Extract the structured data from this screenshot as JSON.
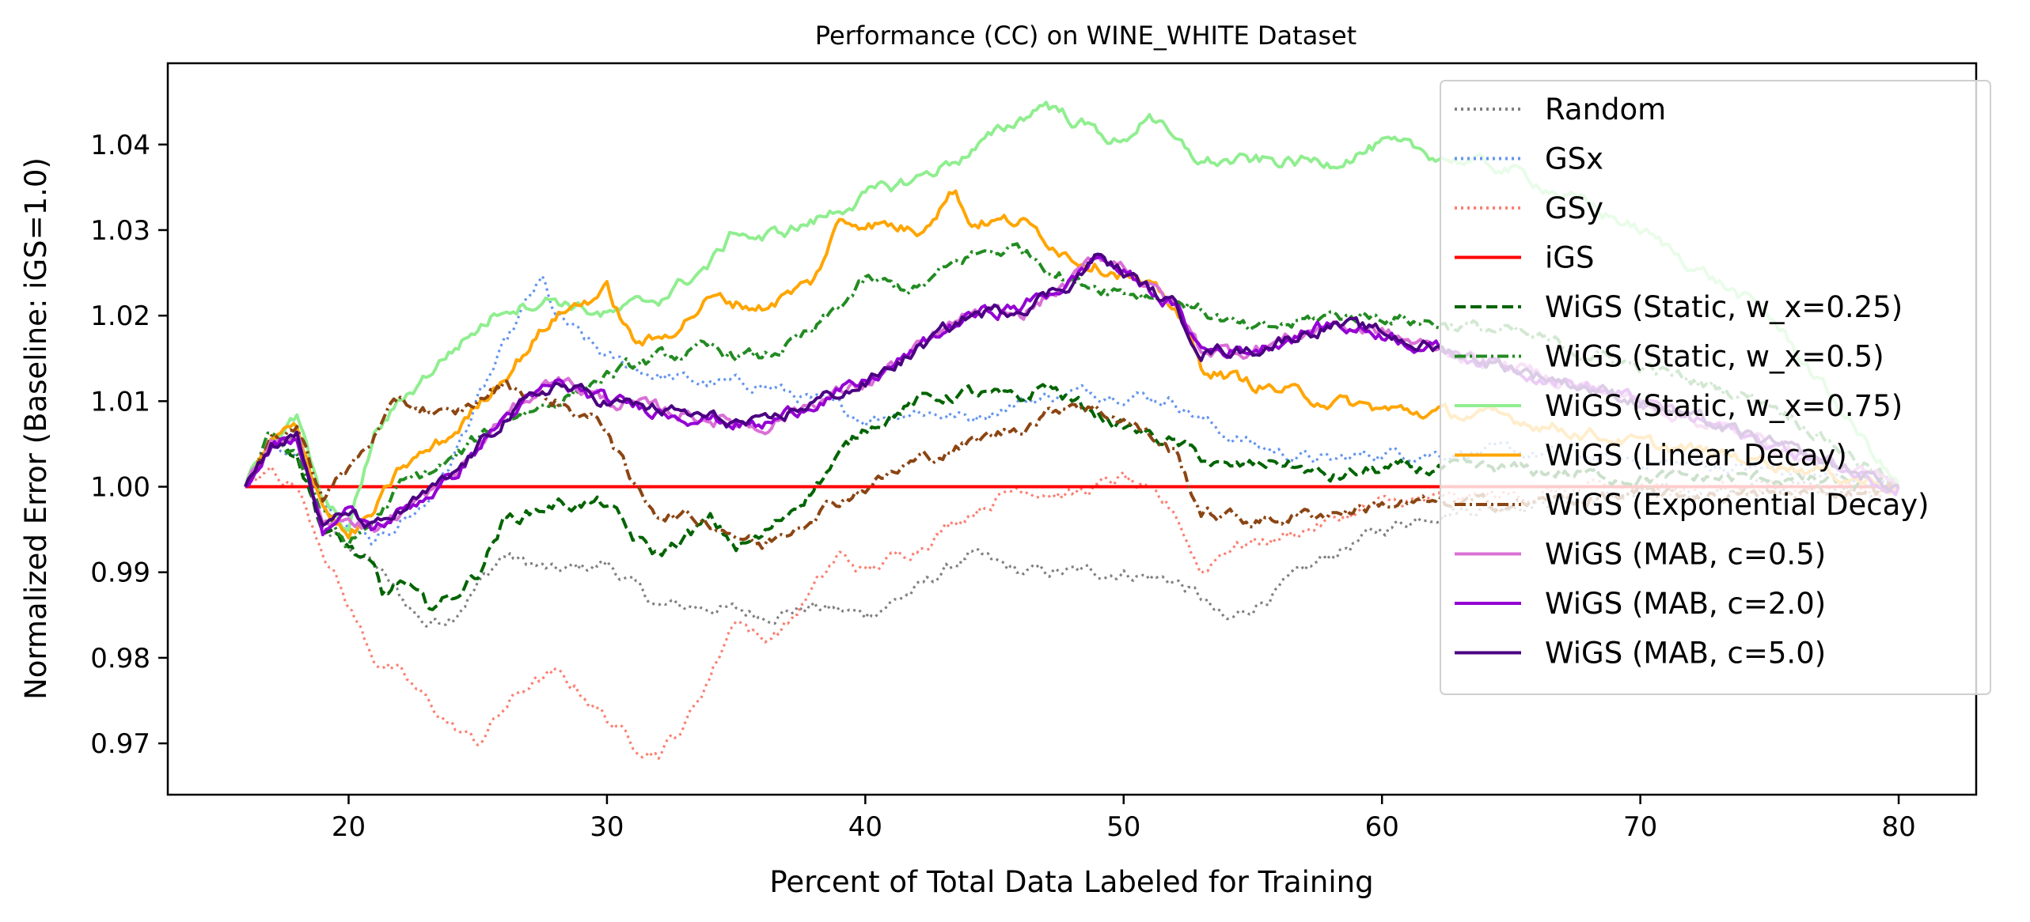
{
  "chart_data": {
    "type": "line",
    "title": "Performance (CC) on WINE_WHITE Dataset",
    "xlabel": "Percent of Total Data Labeled for Training",
    "ylabel": "Normalized Error (Baseline: iGS=1.0)",
    "xlim": [
      13,
      83
    ],
    "ylim": [
      0.964,
      1.0495
    ],
    "xticks": [
      20,
      30,
      40,
      50,
      60,
      70,
      80
    ],
    "yticks": [
      0.97,
      0.98,
      0.99,
      1.0,
      1.01,
      1.02,
      1.03,
      1.04
    ],
    "grid": false,
    "legend_position": "top-right",
    "series": [
      {
        "name": "Random",
        "color": "#808080",
        "style": "dotted",
        "x": [
          16,
          17,
          18,
          19,
          20,
          21,
          22,
          23,
          24,
          26,
          28,
          30,
          32,
          34,
          36,
          38,
          40,
          42,
          44,
          46,
          48,
          50,
          52,
          53,
          54,
          56,
          58,
          60,
          62,
          65,
          70,
          75,
          80
        ],
        "y": [
          1.0,
          1.004,
          1.006,
          0.995,
          0.993,
          0.991,
          0.987,
          0.984,
          0.985,
          0.992,
          0.99,
          0.991,
          0.986,
          0.986,
          0.985,
          0.986,
          0.985,
          0.988,
          0.992,
          0.99,
          0.99,
          0.99,
          0.989,
          0.987,
          0.984,
          0.988,
          0.992,
          0.995,
          0.997,
          0.998,
          0.999,
          1.0,
          1.0
        ]
      },
      {
        "name": "GSx",
        "color": "#6495ed",
        "style": "dotted",
        "x": [
          16,
          17,
          18,
          19,
          20,
          21,
          22,
          23,
          24,
          25,
          26,
          27,
          27.5,
          28,
          30,
          32,
          34,
          36,
          38,
          40,
          42,
          44,
          46,
          48,
          50,
          52,
          54,
          56,
          58,
          60,
          65,
          70,
          75,
          80
        ],
        "y": [
          1.0,
          1.005,
          1.004,
          0.998,
          0.995,
          0.993,
          0.996,
          0.998,
          1.003,
          1.01,
          1.016,
          1.022,
          1.024,
          1.02,
          1.015,
          1.013,
          1.012,
          1.012,
          1.01,
          1.008,
          1.009,
          1.008,
          1.01,
          1.011,
          1.011,
          1.01,
          1.006,
          1.004,
          1.003,
          1.004,
          1.004,
          1.003,
          1.002,
          1.0
        ]
      },
      {
        "name": "GSy",
        "color": "#fa8072",
        "style": "dotted",
        "x": [
          16,
          17,
          18,
          19,
          20,
          21,
          22,
          23,
          24,
          25,
          26,
          27,
          28,
          29,
          30,
          31,
          32,
          33,
          34,
          35,
          36,
          37,
          38,
          39,
          40,
          42,
          44,
          46,
          48,
          50,
          52,
          53,
          54,
          56,
          58,
          60,
          65,
          70,
          75,
          80
        ],
        "y": [
          1.0,
          1.002,
          1.0,
          0.993,
          0.986,
          0.98,
          0.978,
          0.975,
          0.972,
          0.97,
          0.974,
          0.977,
          0.978,
          0.976,
          0.973,
          0.97,
          0.969,
          0.972,
          0.978,
          0.985,
          0.982,
          0.984,
          0.988,
          0.992,
          0.99,
          0.993,
          0.997,
          1.0,
          0.999,
          1.001,
          0.997,
          0.99,
          0.993,
          0.994,
          0.996,
          0.998,
          0.999,
          1.0,
          1.0,
          1.0
        ]
      },
      {
        "name": "iGS",
        "color": "#ff0000",
        "style": "solid",
        "x": [
          16,
          80
        ],
        "y": [
          1.0,
          1.0
        ]
      },
      {
        "name": "WiGS (Static, w_x=0.25)",
        "color": "#006400",
        "style": "dashed",
        "x": [
          16,
          17,
          18,
          19,
          20,
          21,
          21.3,
          22,
          23,
          24,
          25,
          26,
          28,
          30,
          31,
          32,
          34,
          35,
          36,
          38,
          40,
          42,
          44,
          46,
          47,
          48,
          50,
          52,
          54,
          56,
          58,
          60,
          65,
          70,
          75,
          80
        ],
        "y": [
          1.0,
          1.006,
          1.004,
          0.995,
          0.993,
          0.99,
          0.987,
          0.989,
          0.986,
          0.987,
          0.99,
          0.996,
          0.998,
          0.998,
          0.994,
          0.992,
          0.996,
          0.993,
          0.994,
          1.0,
          1.007,
          1.01,
          1.011,
          1.01,
          1.012,
          1.01,
          1.007,
          1.005,
          1.002,
          1.003,
          1.001,
          1.002,
          1.002,
          1.001,
          1.001,
          1.0
        ]
      },
      {
        "name": "WiGS (Static, w_x=0.5)",
        "color": "#228b22",
        "style": "dashdot",
        "x": [
          16,
          17,
          18,
          19,
          20,
          21,
          22,
          24,
          26,
          28,
          30,
          32,
          34,
          36,
          38,
          40,
          42,
          44,
          46,
          48,
          50,
          52,
          55,
          58,
          60,
          65,
          70,
          75,
          80
        ],
        "y": [
          1.0,
          1.006,
          1.004,
          0.997,
          0.993,
          0.996,
          1.0,
          1.003,
          1.008,
          1.01,
          1.013,
          1.015,
          1.016,
          1.015,
          1.018,
          1.024,
          1.023,
          1.027,
          1.028,
          1.024,
          1.023,
          1.022,
          1.018,
          1.02,
          1.02,
          1.018,
          1.014,
          1.01,
          1.0
        ]
      },
      {
        "name": "WiGS (Static, w_x=0.75)",
        "color": "#90ee90",
        "style": "solid",
        "x": [
          16,
          17,
          18,
          19,
          20,
          21,
          22,
          24,
          26,
          28,
          30,
          32,
          34,
          35,
          36,
          38,
          40,
          42,
          44,
          46,
          47,
          48,
          50,
          51,
          52,
          53,
          55,
          58,
          60,
          65,
          70,
          75,
          80
        ],
        "y": [
          1.0,
          1.006,
          1.008,
          0.998,
          0.995,
          1.006,
          1.01,
          1.016,
          1.021,
          1.022,
          1.02,
          1.022,
          1.026,
          1.03,
          1.029,
          1.031,
          1.034,
          1.036,
          1.039,
          1.043,
          1.045,
          1.043,
          1.04,
          1.044,
          1.04,
          1.038,
          1.038,
          1.038,
          1.04,
          1.037,
          1.03,
          1.02,
          1.0
        ]
      },
      {
        "name": "WiGS (Linear Decay)",
        "color": "#ffa500",
        "style": "solid",
        "x": [
          16,
          17,
          18,
          19,
          20,
          21,
          22,
          24,
          26,
          28,
          30,
          31,
          32,
          34,
          36,
          38,
          39,
          40,
          42,
          43.5,
          44,
          46,
          48,
          50,
          52,
          53,
          55,
          58,
          60,
          65,
          70,
          75,
          80
        ],
        "y": [
          1.0,
          1.005,
          1.007,
          0.998,
          0.994,
          0.997,
          1.002,
          1.006,
          1.013,
          1.02,
          1.023,
          1.017,
          1.017,
          1.022,
          1.021,
          1.024,
          1.031,
          1.031,
          1.03,
          1.035,
          1.031,
          1.031,
          1.027,
          1.025,
          1.021,
          1.014,
          1.012,
          1.01,
          1.009,
          1.008,
          1.005,
          1.003,
          1.0
        ]
      },
      {
        "name": "WiGS (Exponential Decay)",
        "color": "#8b4513",
        "style": "dashdot",
        "x": [
          16,
          17,
          18,
          19,
          20,
          21,
          22,
          24,
          26,
          28,
          30,
          31,
          32,
          34,
          36,
          38,
          40,
          42,
          44,
          46,
          48,
          50,
          52,
          53,
          55,
          58,
          60,
          65,
          70,
          75,
          80
        ],
        "y": [
          1.0,
          1.005,
          1.007,
          0.999,
          1.002,
          1.006,
          1.01,
          1.008,
          1.012,
          1.01,
          1.007,
          1.0,
          0.997,
          0.996,
          0.993,
          0.997,
          1.0,
          1.003,
          1.005,
          1.007,
          1.01,
          1.008,
          1.004,
          0.997,
          0.996,
          0.997,
          0.998,
          0.998,
          0.999,
          0.999,
          1.0
        ]
      },
      {
        "name": "WiGS (MAB, c=0.5)",
        "color": "#da70d6",
        "style": "solid",
        "x": [
          16,
          17,
          18,
          19,
          20,
          21,
          22,
          24,
          26,
          28,
          30,
          32,
          34,
          36,
          38,
          40,
          42,
          44,
          46,
          48,
          49,
          50,
          52,
          53,
          55,
          58,
          60,
          61,
          65,
          70,
          75,
          80
        ],
        "y": [
          1.0,
          1.005,
          1.006,
          0.995,
          0.997,
          0.995,
          0.997,
          1.001,
          1.008,
          1.013,
          1.01,
          1.009,
          1.008,
          1.007,
          1.01,
          1.012,
          1.016,
          1.02,
          1.02,
          1.024,
          1.027,
          1.026,
          1.021,
          1.016,
          1.016,
          1.019,
          1.018,
          1.017,
          1.014,
          1.01,
          1.005,
          1.0
        ]
      },
      {
        "name": "WiGS (MAB, c=2.0)",
        "color": "#9400d3",
        "style": "solid",
        "x": [
          16,
          17,
          18,
          19,
          20,
          21,
          22,
          24,
          26,
          28,
          30,
          32,
          34,
          36,
          38,
          40,
          42,
          44,
          46,
          48,
          49,
          50,
          52,
          53,
          55,
          58,
          60,
          61,
          65,
          70,
          75,
          80
        ],
        "y": [
          1.0,
          1.005,
          1.006,
          0.995,
          0.997,
          0.995,
          0.997,
          1.001,
          1.008,
          1.012,
          1.01,
          1.009,
          1.008,
          1.007,
          1.01,
          1.012,
          1.016,
          1.02,
          1.021,
          1.024,
          1.027,
          1.025,
          1.021,
          1.016,
          1.016,
          1.019,
          1.018,
          1.017,
          1.014,
          1.01,
          1.005,
          1.0
        ]
      },
      {
        "name": "WiGS (MAB, c=5.0)",
        "color": "#4b0082",
        "style": "solid",
        "x": [
          16,
          17,
          18,
          19,
          20,
          21,
          22,
          24,
          26,
          28,
          30,
          32,
          34,
          36,
          38,
          40,
          42,
          44,
          46,
          48,
          49,
          50,
          52,
          53,
          55,
          58,
          60,
          61,
          65,
          70,
          75,
          80
        ],
        "y": [
          1.0,
          1.005,
          1.006,
          0.995,
          0.997,
          0.995,
          0.997,
          1.001,
          1.008,
          1.012,
          1.01,
          1.009,
          1.008,
          1.007,
          1.01,
          1.012,
          1.016,
          1.02,
          1.021,
          1.024,
          1.027,
          1.025,
          1.021,
          1.016,
          1.016,
          1.019,
          1.018,
          1.017,
          1.014,
          1.01,
          1.005,
          1.0
        ]
      }
    ]
  }
}
